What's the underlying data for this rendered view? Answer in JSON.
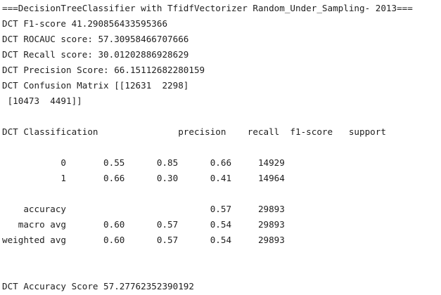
{
  "console": {
    "lines": [
      "===DecisionTreeClassifier with TfidfVectorizer Random_Under_Sampling- 2013===",
      "DCT F1-score 41.290856433595366",
      "DCT ROCAUC score: 57.30958466707666",
      "DCT Recall score: 30.01202886928629",
      "DCT Precision Score: 66.15112682280159",
      "DCT Confusion Matrix [[12631  2298]",
      " [10473  4491]]",
      "",
      "DCT Classification               precision    recall  f1-score   support",
      "",
      "           0       0.55      0.85      0.66     14929",
      "           1       0.66      0.30      0.41     14964",
      "",
      "    accuracy                           0.57     29893",
      "   macro avg       0.60      0.57      0.54     29893",
      "weighted avg       0.60      0.57      0.54     29893",
      "",
      "",
      "DCT Accuracy Score 57.27762352390192"
    ]
  }
}
